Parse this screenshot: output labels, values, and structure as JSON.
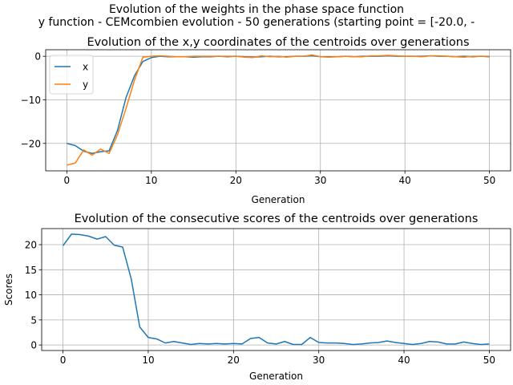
{
  "figure": {
    "suptitle_line1": "Evolution of the weights in the phase space  function",
    "suptitle_line2": "y function - CEMcombien evolution - 50 generations (starting point = [-20.0, -"
  },
  "chart_data": [
    {
      "type": "line",
      "title": "Evolution of the x,y coordinates of the centroids over generations",
      "xlabel": "Generation",
      "ylabel": "",
      "xlim": [
        -2.5,
        52.5
      ],
      "ylim": [
        -26.3,
        1.5
      ],
      "xticks": [
        0,
        10,
        20,
        30,
        40,
        50
      ],
      "yticks": [
        0,
        -10,
        -20
      ],
      "grid": true,
      "legend": "top-left",
      "x": [
        0,
        1,
        2,
        3,
        4,
        5,
        6,
        7,
        8,
        9,
        10,
        11,
        12,
        13,
        14,
        15,
        16,
        17,
        18,
        19,
        20,
        21,
        22,
        23,
        24,
        25,
        26,
        27,
        28,
        29,
        30,
        31,
        32,
        33,
        34,
        35,
        36,
        37,
        38,
        39,
        40,
        41,
        42,
        43,
        44,
        45,
        46,
        47,
        48,
        49,
        50
      ],
      "series": [
        {
          "name": "x",
          "color": "#1f77b4",
          "values": [
            -20.0,
            -20.5,
            -21.8,
            -22.3,
            -21.9,
            -21.7,
            -17.0,
            -9.5,
            -4.5,
            -1.2,
            -0.3,
            0.0,
            -0.1,
            -0.1,
            -0.1,
            -0.2,
            -0.1,
            -0.1,
            0.0,
            -0.1,
            0.0,
            -0.1,
            -0.2,
            -0.1,
            0.0,
            -0.1,
            -0.1,
            0.0,
            0.0,
            0.1,
            -0.1,
            -0.1,
            -0.1,
            0.0,
            -0.1,
            0.0,
            0.0,
            0.0,
            0.1,
            0.0,
            0.0,
            0.0,
            0.0,
            0.1,
            0.0,
            0.0,
            -0.1,
            0.0,
            -0.1,
            0.0,
            -0.1
          ]
        },
        {
          "name": "y",
          "color": "#ff7f0e",
          "values": [
            -25.0,
            -24.5,
            -21.5,
            -22.7,
            -21.3,
            -22.3,
            -18.0,
            -12.0,
            -5.5,
            -0.2,
            0.0,
            0.1,
            0.0,
            -0.1,
            -0.1,
            0.0,
            0.0,
            0.0,
            0.0,
            0.0,
            0.0,
            -0.2,
            -0.3,
            0.1,
            -0.1,
            0.0,
            -0.2,
            0.0,
            0.0,
            0.3,
            -0.1,
            -0.2,
            -0.1,
            0.0,
            -0.1,
            -0.1,
            0.1,
            0.1,
            0.2,
            0.1,
            0.0,
            0.0,
            -0.1,
            0.1,
            0.1,
            0.0,
            -0.1,
            -0.2,
            0.0,
            0.0,
            0.0
          ]
        }
      ]
    },
    {
      "type": "line",
      "title": "Evolution of the consecutive scores of the centroids over generations",
      "xlabel": "Generation",
      "ylabel": "Scores",
      "xlim": [
        -2.5,
        52.5
      ],
      "ylim": [
        -1.1,
        23.2
      ],
      "xticks": [
        0,
        10,
        20,
        30,
        40,
        50
      ],
      "yticks": [
        0,
        5,
        10,
        15,
        20
      ],
      "grid": true,
      "x": [
        0,
        1,
        2,
        3,
        4,
        5,
        6,
        7,
        8,
        9,
        10,
        11,
        12,
        13,
        14,
        15,
        16,
        17,
        18,
        19,
        20,
        21,
        22,
        23,
        24,
        25,
        26,
        27,
        28,
        29,
        30,
        31,
        32,
        33,
        34,
        35,
        36,
        37,
        38,
        39,
        40,
        41,
        42,
        43,
        44,
        45,
        46,
        47,
        48,
        49,
        50
      ],
      "series": [
        {
          "color": "#1f77b4",
          "values": [
            19.8,
            22.1,
            22.0,
            21.7,
            21.1,
            21.6,
            19.9,
            19.5,
            13.2,
            3.6,
            1.5,
            1.2,
            0.4,
            0.7,
            0.4,
            0.1,
            0.3,
            0.2,
            0.3,
            0.2,
            0.3,
            0.2,
            1.3,
            1.5,
            0.4,
            0.2,
            0.7,
            0.1,
            0.1,
            1.5,
            0.5,
            0.4,
            0.4,
            0.3,
            0.1,
            0.2,
            0.4,
            0.5,
            0.8,
            0.5,
            0.3,
            0.1,
            0.3,
            0.7,
            0.6,
            0.2,
            0.2,
            0.6,
            0.3,
            0.1,
            0.2
          ]
        }
      ]
    }
  ]
}
